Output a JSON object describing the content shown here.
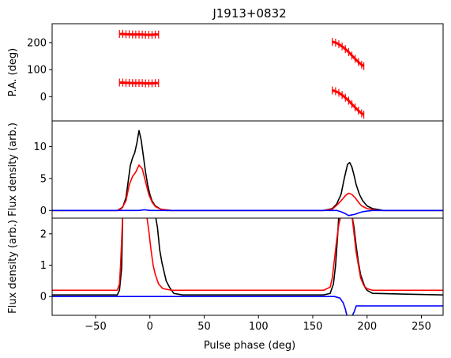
{
  "chart_data": {
    "type": "line",
    "title": "J1913+0832",
    "xlabel": "Pulse phase (deg)",
    "xlim": [
      -90,
      270
    ],
    "xticks": [
      -50,
      0,
      50,
      100,
      150,
      200,
      250
    ],
    "xtick_labels": [
      "−50",
      "0",
      "50",
      "100",
      "150",
      "200",
      "250"
    ],
    "panels": [
      {
        "id": "pa",
        "ylabel": "P.A. (deg)",
        "ylim": [
          -90,
          270
        ],
        "yticks": [
          0,
          100,
          200
        ],
        "ytick_labels": [
          "0",
          "100",
          "200"
        ],
        "series": [
          {
            "color": "#ff0000",
            "style": "errorbar",
            "x": [
              -28,
              -25,
              -22,
              -19,
              -16,
              -13,
              -10,
              -7,
              -4,
              -1,
              2,
              5,
              8
            ],
            "y": [
              232,
              232,
              231,
              231,
              230,
              230,
              230,
              230,
              229,
              229,
              229,
              230,
              230
            ]
          },
          {
            "color": "#ff0000",
            "style": "errorbar",
            "x": [
              -28,
              -25,
              -22,
              -19,
              -16,
              -13,
              -10,
              -7,
              -4,
              -1,
              2,
              5,
              8
            ],
            "y": [
              52,
              52,
              51,
              51,
              50,
              50,
              50,
              50,
              49,
              49,
              49,
              50,
              50
            ]
          },
          {
            "color": "#ff0000",
            "style": "errorbar",
            "x": [
              168,
              171,
              174,
              177,
              180,
              183,
              186,
              189,
              192,
              195,
              197
            ],
            "y": [
              203,
              200,
              194,
              186,
              176,
              165,
              152,
              140,
              128,
              118,
              113
            ]
          },
          {
            "color": "#ff0000",
            "style": "errorbar",
            "x": [
              168,
              171,
              174,
              177,
              180,
              183,
              186,
              189,
              192,
              195,
              197
            ],
            "y": [
              23,
              20,
              14,
              6,
              -4,
              -15,
              -28,
              -40,
              -52,
              -62,
              -67
            ]
          }
        ]
      },
      {
        "id": "profile",
        "ylabel": "Flux density (arb.)",
        "ylim": [
          -1.2,
          14
        ],
        "yticks": [
          0,
          5,
          10
        ],
        "ytick_labels": [
          "0",
          "5",
          "10"
        ],
        "series": [
          {
            "color": "#000000",
            "x": [
              -90,
              -30,
              -25,
              -22,
              -20,
              -18,
              -16,
              -14,
              -12,
              -10,
              -8,
              -6,
              -4,
              -2,
              0,
              2,
              5,
              10,
              15,
              30,
              160,
              168,
              172,
              176,
              179,
              182,
              184,
              186,
              188,
              190,
              193,
              196,
              200,
              205,
              215,
              270
            ],
            "y": [
              0,
              0,
              0.5,
              2,
              4.5,
              7,
              8.2,
              9,
              10.5,
              12.5,
              11,
              8.5,
              6,
              4,
              2.5,
              1.5,
              0.7,
              0.2,
              0,
              0,
              0,
              0.3,
              1,
              2.5,
              5,
              7.2,
              7.5,
              6.8,
              5.5,
              4,
              2.5,
              1.5,
              0.7,
              0.3,
              0,
              0
            ]
          },
          {
            "color": "#ff0000",
            "x": [
              -90,
              -30,
              -26,
              -22,
              -19,
              -16,
              -13,
              -10,
              -7,
              -4,
              -1,
              2,
              5,
              10,
              20,
              160,
              168,
              172,
              176,
              180,
              183,
              186,
              189,
              192,
              195,
              200,
              210,
              270
            ],
            "y": [
              0,
              0,
              0.3,
              1.5,
              4,
              5.3,
              6,
              7.1,
              6.5,
              4.5,
              2.5,
              1.3,
              0.6,
              0.2,
              0,
              0,
              0.2,
              0.8,
              1.5,
              2.3,
              2.7,
              2.5,
              2,
              1.3,
              0.7,
              0.3,
              0,
              0
            ]
          },
          {
            "color": "#0000ff",
            "x": [
              -90,
              -10,
              -5,
              0,
              10,
              165,
              172,
              176,
              180,
              183,
              186,
              189,
              192,
              196,
              200,
              205,
              270
            ],
            "y": [
              0,
              0,
              0.1,
              0,
              0,
              0,
              0,
              -0.2,
              -0.5,
              -0.8,
              -0.7,
              -0.6,
              -0.4,
              -0.2,
              -0.1,
              0,
              0
            ]
          }
        ]
      },
      {
        "id": "zoom",
        "ylabel": "Flux density (arb.)",
        "ylim": [
          -0.6,
          2.5
        ],
        "yticks": [
          0,
          1,
          2
        ],
        "ytick_labels": [
          "0",
          "1",
          "2"
        ],
        "series": [
          {
            "color": "#000000",
            "x": [
              -90,
              -30,
              -28,
              -26,
              -25,
              -22,
              5,
              7,
              9,
              11,
              13,
              15,
              18,
              22,
              30,
              160,
              166,
              169,
              171,
              173,
              174,
              186,
              188,
              190,
              192,
              194,
              196,
              198,
              200,
              205,
              270
            ],
            "y": [
              0.05,
              0.05,
              0.2,
              0.9,
              2.6,
              2.6,
              2.6,
              2.2,
              1.5,
              1.1,
              0.8,
              0.5,
              0.3,
              0.1,
              0.05,
              0.05,
              0.1,
              0.4,
              1,
              2,
              2.6,
              2.6,
              2.2,
              1.6,
              1.1,
              0.7,
              0.5,
              0.3,
              0.2,
              0.1,
              0.05
            ]
          },
          {
            "color": "#ff0000",
            "x": [
              -90,
              -30,
              -28,
              -27,
              -26,
              -25,
              -3,
              -1,
              1,
              3,
              5,
              8,
              12,
              20,
              160,
              166,
              168,
              170,
              172,
              174,
              176,
              186,
              188,
              190,
              192,
              194,
              197,
              200,
              205,
              270
            ],
            "y": [
              0.2,
              0.2,
              0.4,
              1,
              1.8,
              2.6,
              2.6,
              2.1,
              1.5,
              1,
              0.7,
              0.4,
              0.25,
              0.2,
              0.2,
              0.3,
              0.6,
              1.2,
              1.8,
              2.3,
              2.6,
              2.6,
              2,
              1.4,
              1,
              0.6,
              0.35,
              0.25,
              0.2,
              0.2
            ]
          },
          {
            "color": "#0000ff",
            "x": [
              -90,
              150,
              170,
              175,
              178,
              180,
              182,
              185,
              188,
              190,
              270
            ],
            "y": [
              0,
              0,
              0,
              -0.05,
              -0.2,
              -0.4,
              -0.7,
              -0.7,
              -0.5,
              -0.3,
              -0.3
            ]
          }
        ]
      }
    ]
  }
}
